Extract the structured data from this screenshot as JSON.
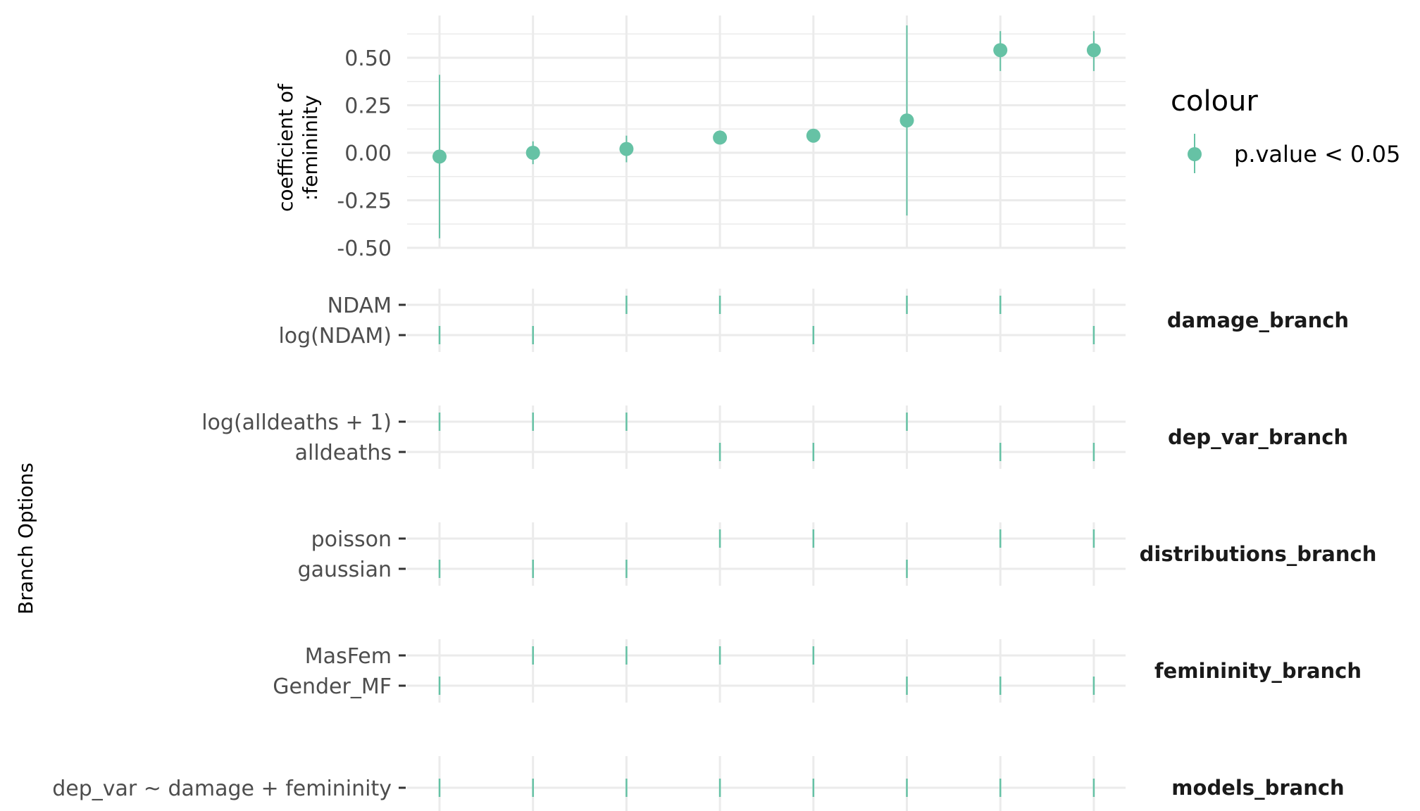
{
  "chart_data": {
    "type": "scatter",
    "specification_count": 8,
    "coef_panel": {
      "ylabel_lines": [
        "coefficient of",
        ":femininity"
      ],
      "ylim": [
        -0.5,
        0.5
      ],
      "yticks": [
        "0.50",
        "0.25",
        "0.00",
        "-0.25",
        "-0.50"
      ],
      "ytick_values": [
        0.5,
        0.25,
        0.0,
        -0.25,
        -0.5
      ],
      "points": [
        {
          "estimate": -0.02,
          "low": -0.45,
          "high": 0.41
        },
        {
          "estimate": 0.0,
          "low": -0.06,
          "high": 0.06
        },
        {
          "estimate": 0.02,
          "low": -0.05,
          "high": 0.09
        },
        {
          "estimate": 0.08,
          "low": 0.07,
          "high": 0.09
        },
        {
          "estimate": 0.09,
          "low": 0.08,
          "high": 0.1
        },
        {
          "estimate": 0.17,
          "low": -0.33,
          "high": 0.67
        },
        {
          "estimate": 0.54,
          "low": 0.43,
          "high": 0.64
        },
        {
          "estimate": 0.54,
          "low": 0.43,
          "high": 0.64
        }
      ],
      "color": "#66c2a5"
    },
    "legend": {
      "title": "colour",
      "entries": [
        "p.value < 0.05"
      ]
    },
    "branch_axis_title": "Branch Options",
    "branches": [
      {
        "strip": "damage_branch",
        "levels": [
          "NDAM",
          "log(NDAM)"
        ],
        "assign": [
          1,
          1,
          0,
          0,
          1,
          0,
          0,
          1
        ]
      },
      {
        "strip": "dep_var_branch",
        "levels": [
          "log(alldeaths + 1)",
          "alldeaths"
        ],
        "assign": [
          0,
          0,
          0,
          1,
          1,
          0,
          1,
          1
        ]
      },
      {
        "strip": "distributions_branch",
        "levels": [
          "poisson",
          "gaussian"
        ],
        "assign": [
          1,
          1,
          1,
          0,
          0,
          1,
          0,
          0
        ]
      },
      {
        "strip": "femininity_branch",
        "levels": [
          "MasFem",
          "Gender_MF"
        ],
        "assign": [
          1,
          0,
          0,
          0,
          0,
          1,
          1,
          1
        ]
      },
      {
        "strip": "models_branch",
        "levels": [
          "dep_var ~ damage + femininity"
        ],
        "assign": [
          0,
          0,
          0,
          0,
          0,
          0,
          0,
          0
        ]
      }
    ]
  }
}
